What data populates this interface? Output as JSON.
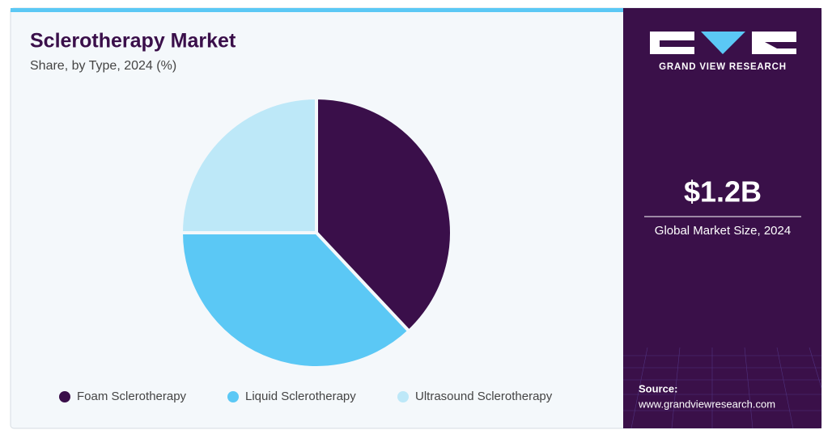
{
  "chart_data": {
    "type": "pie",
    "title": "Sclerotherapy Market",
    "subtitle": "Share, by Type, 2024 (%)",
    "categories": [
      "Foam Sclerotherapy",
      "Liquid Sclerotherapy",
      "Ultrasound Sclerotherapy"
    ],
    "values": [
      38,
      37,
      25
    ],
    "colors": [
      "#3a0f4a",
      "#5bc8f5",
      "#bde8f8"
    ],
    "legend": "bottom"
  },
  "side_panel": {
    "brand": "GRAND VIEW RESEARCH",
    "market_size": "$1.2B",
    "market_size_label": "Global Market Size, 2024",
    "source_label": "Source:",
    "source_url": "www.grandviewresearch.com"
  }
}
